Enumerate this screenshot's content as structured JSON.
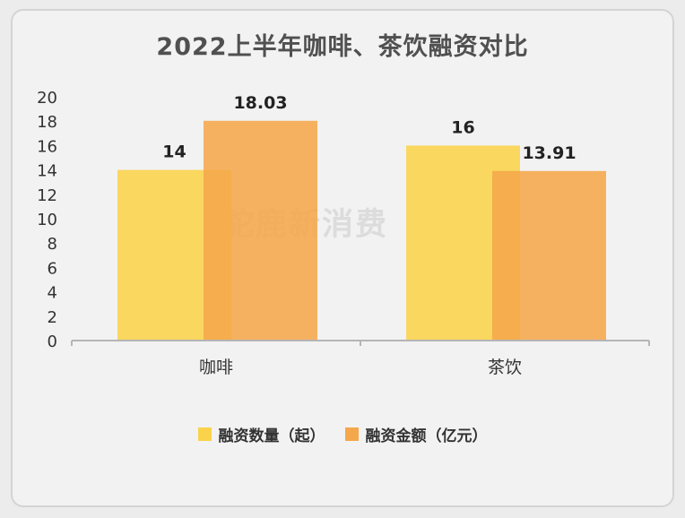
{
  "watermark": "驼鹿新消费",
  "chart_data": {
    "type": "bar",
    "title": "2022上半年咖啡、茶饮融资对比",
    "categories": [
      "咖啡",
      "茶饮"
    ],
    "series": [
      {
        "name": "融资数量（起）",
        "values": [
          14,
          16
        ],
        "labels": [
          "14",
          "16"
        ],
        "color": "#fad34a"
      },
      {
        "name": "融资金额（亿元）",
        "values": [
          18.03,
          13.91
        ],
        "labels": [
          "18.03",
          "13.91"
        ],
        "color": "#f5a74b"
      }
    ],
    "ylim": [
      0,
      20
    ],
    "yticks": [
      0,
      2,
      4,
      6,
      8,
      10,
      12,
      14,
      16,
      18,
      20
    ],
    "grid": false,
    "legend_position": "bottom"
  }
}
